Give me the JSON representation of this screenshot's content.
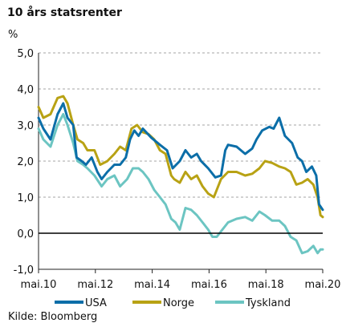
{
  "chart_data": {
    "type": "line",
    "title": "10 års statsrenter",
    "ylabel": "%",
    "ylim": [
      -1.0,
      5.0
    ],
    "yticks": [
      -1.0,
      0.0,
      1.0,
      2.0,
      3.0,
      4.0,
      5.0
    ],
    "ytick_labels": [
      "-1,0",
      "0,0",
      "1,0",
      "2,0",
      "3,0",
      "4,0",
      "5,0"
    ],
    "xlim": [
      2010.33,
      2020.33
    ],
    "xticks": [
      2010.33,
      2012.33,
      2014.33,
      2016.33,
      2018.33,
      2020.33
    ],
    "xtick_labels": [
      "mai.10",
      "mai.12",
      "mai.14",
      "mai.16",
      "mai.18",
      "mai.20"
    ],
    "grid": "horizontal dashed",
    "legend_position": "bottom",
    "series": [
      {
        "name": "USA",
        "color": "#0b6ea8",
        "x": [
          2010.33,
          2010.5,
          2010.75,
          2011.0,
          2011.2,
          2011.35,
          2011.55,
          2011.67,
          2011.85,
          2012.0,
          2012.2,
          2012.4,
          2012.55,
          2012.75,
          2013.0,
          2013.2,
          2013.4,
          2013.55,
          2013.7,
          2013.85,
          2014.0,
          2014.3,
          2014.6,
          2014.85,
          2015.05,
          2015.3,
          2015.5,
          2015.7,
          2015.9,
          2016.05,
          2016.3,
          2016.55,
          2016.75,
          2016.9,
          2017.0,
          2017.3,
          2017.6,
          2017.85,
          2018.0,
          2018.2,
          2018.45,
          2018.6,
          2018.8,
          2019.0,
          2019.25,
          2019.45,
          2019.6,
          2019.75,
          2019.95,
          2020.1,
          2020.2,
          2020.33
        ],
        "y": [
          3.2,
          2.9,
          2.6,
          3.3,
          3.6,
          3.2,
          3.0,
          2.1,
          2.0,
          1.9,
          2.1,
          1.7,
          1.5,
          1.7,
          1.9,
          1.9,
          2.1,
          2.6,
          2.85,
          2.7,
          2.9,
          2.65,
          2.45,
          2.3,
          1.8,
          2.0,
          2.3,
          2.1,
          2.2,
          2.0,
          1.8,
          1.55,
          1.6,
          2.3,
          2.45,
          2.4,
          2.2,
          2.35,
          2.6,
          2.85,
          2.95,
          2.9,
          3.2,
          2.7,
          2.5,
          2.1,
          2.0,
          1.7,
          1.85,
          1.6,
          0.8,
          0.65
        ]
      },
      {
        "name": "Norge",
        "color": "#b8a214",
        "x": [
          2010.33,
          2010.5,
          2010.75,
          2011.0,
          2011.2,
          2011.35,
          2011.55,
          2011.7,
          2011.9,
          2012.05,
          2012.3,
          2012.5,
          2012.75,
          2013.0,
          2013.2,
          2013.4,
          2013.6,
          2013.8,
          2014.0,
          2014.2,
          2014.4,
          2014.6,
          2014.8,
          2015.0,
          2015.1,
          2015.3,
          2015.5,
          2015.7,
          2015.9,
          2016.1,
          2016.3,
          2016.5,
          2016.75,
          2017.0,
          2017.3,
          2017.6,
          2017.85,
          2018.1,
          2018.3,
          2018.55,
          2018.8,
          2019.0,
          2019.2,
          2019.4,
          2019.6,
          2019.8,
          2020.0,
          2020.15,
          2020.25,
          2020.33
        ],
        "y": [
          3.5,
          3.2,
          3.3,
          3.75,
          3.8,
          3.6,
          3.0,
          2.6,
          2.5,
          2.3,
          2.3,
          1.9,
          2.0,
          2.2,
          2.4,
          2.3,
          2.9,
          3.0,
          2.8,
          2.75,
          2.6,
          2.3,
          2.2,
          1.6,
          1.5,
          1.4,
          1.7,
          1.5,
          1.6,
          1.3,
          1.1,
          1.0,
          1.5,
          1.7,
          1.7,
          1.6,
          1.65,
          1.8,
          2.0,
          1.95,
          1.85,
          1.8,
          1.7,
          1.35,
          1.4,
          1.5,
          1.35,
          1.0,
          0.5,
          0.45
        ]
      },
      {
        "name": "Tyskland",
        "color": "#6cc5c2",
        "x": [
          2010.33,
          2010.5,
          2010.75,
          2011.0,
          2011.2,
          2011.35,
          2011.55,
          2011.7,
          2011.9,
          2012.05,
          2012.3,
          2012.55,
          2012.75,
          2013.0,
          2013.2,
          2013.45,
          2013.65,
          2013.85,
          2014.0,
          2014.2,
          2014.4,
          2014.6,
          2014.8,
          2015.0,
          2015.15,
          2015.3,
          2015.5,
          2015.7,
          2015.9,
          2016.1,
          2016.3,
          2016.45,
          2016.6,
          2016.8,
          2017.0,
          2017.3,
          2017.6,
          2017.85,
          2018.1,
          2018.3,
          2018.55,
          2018.8,
          2019.0,
          2019.2,
          2019.4,
          2019.6,
          2019.8,
          2020.0,
          2020.15,
          2020.25,
          2020.33
        ],
        "y": [
          2.9,
          2.6,
          2.4,
          3.0,
          3.3,
          3.0,
          2.5,
          2.0,
          1.9,
          1.8,
          1.6,
          1.3,
          1.5,
          1.6,
          1.3,
          1.5,
          1.8,
          1.8,
          1.7,
          1.5,
          1.2,
          1.0,
          0.8,
          0.4,
          0.3,
          0.1,
          0.7,
          0.65,
          0.5,
          0.3,
          0.1,
          -0.1,
          -0.1,
          0.1,
          0.3,
          0.4,
          0.45,
          0.35,
          0.6,
          0.5,
          0.35,
          0.35,
          0.2,
          -0.1,
          -0.2,
          -0.55,
          -0.5,
          -0.35,
          -0.55,
          -0.45,
          -0.45
        ]
      }
    ],
    "source": "Kilde: Bloomberg"
  }
}
